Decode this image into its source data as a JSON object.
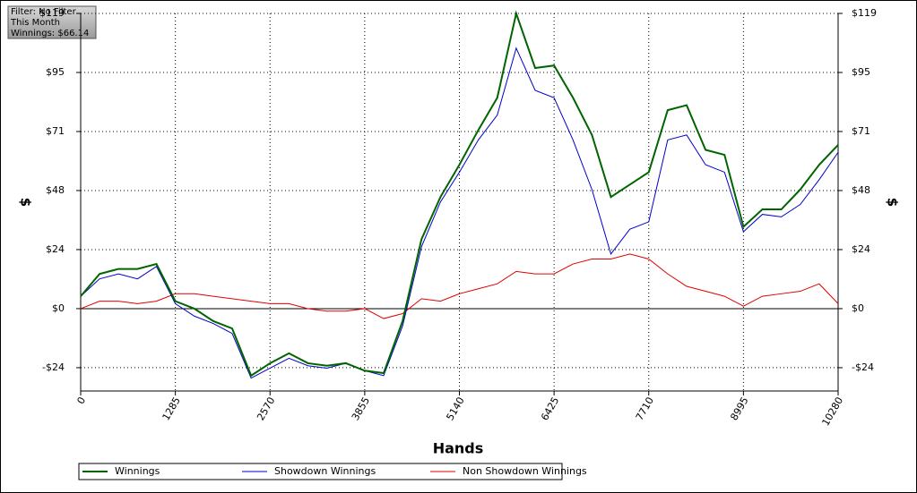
{
  "chart_data": {
    "type": "line",
    "annotations": [
      "Filter: No Filter",
      "This Month",
      "Winnings: $66.14"
    ],
    "xlabel": "Hands",
    "ylabel": "$",
    "y2label": "$",
    "x": [
      0,
      257,
      514,
      771,
      1028,
      1285,
      1542,
      1799,
      2056,
      2313,
      2570,
      2827,
      3084,
      3341,
      3598,
      3855,
      4112,
      4369,
      4626,
      4883,
      5140,
      5397,
      5654,
      5911,
      6168,
      6425,
      6682,
      6939,
      7196,
      7453,
      7710,
      7967,
      8224,
      8481,
      8738,
      8995,
      9252,
      9509,
      9766,
      10023,
      10280
    ],
    "series": [
      {
        "name": "Winnings",
        "color": "#006400",
        "width": 2,
        "values": [
          5,
          14,
          16,
          16,
          18,
          3,
          0,
          -5,
          -8,
          -27,
          -22,
          -18,
          -22,
          -23,
          -22,
          -25,
          -26,
          -5,
          28,
          45,
          58,
          72,
          85,
          119,
          97,
          98,
          85,
          70,
          45,
          50,
          55,
          80,
          82,
          64,
          62,
          33,
          40,
          40,
          48,
          58,
          66
        ]
      },
      {
        "name": "Showdown Winnings",
        "color": "#0000cc",
        "width": 1,
        "values": [
          5,
          12,
          14,
          12,
          17,
          2,
          -3,
          -6,
          -10,
          -28,
          -24,
          -20,
          -23,
          -24,
          -22,
          -25,
          -27,
          -7,
          25,
          43,
          55,
          68,
          78,
          105,
          88,
          85,
          68,
          48,
          22,
          32,
          35,
          68,
          70,
          58,
          55,
          31,
          38,
          37,
          42,
          52,
          63
        ]
      },
      {
        "name": "Non Showdown Winnings",
        "color": "#e00000",
        "width": 1,
        "values": [
          0,
          3,
          3,
          2,
          3,
          6,
          6,
          5,
          4,
          3,
          2,
          2,
          0,
          -1,
          -1,
          0,
          -4,
          -2,
          4,
          3,
          6,
          8,
          10,
          15,
          14,
          14,
          18,
          20,
          20,
          22,
          20,
          14,
          9,
          7,
          5,
          1,
          5,
          6,
          7,
          10,
          2
        ]
      }
    ],
    "xlim": [
      0,
      10280
    ],
    "xticks": [
      0,
      1285,
      2570,
      3855,
      5140,
      6425,
      7710,
      8995,
      10280
    ],
    "ylim": [
      -33.2,
      119
    ],
    "yticks": [
      {
        "value": -23.8,
        "label": "-$24"
      },
      {
        "value": 0,
        "label": "$0"
      },
      {
        "value": 23.8,
        "label": "$24"
      },
      {
        "value": 47.6,
        "label": "$48"
      },
      {
        "value": 71.4,
        "label": "$71"
      },
      {
        "value": 95.2,
        "label": "$95"
      },
      {
        "value": 119,
        "label": "$119"
      }
    ],
    "grid": true
  }
}
